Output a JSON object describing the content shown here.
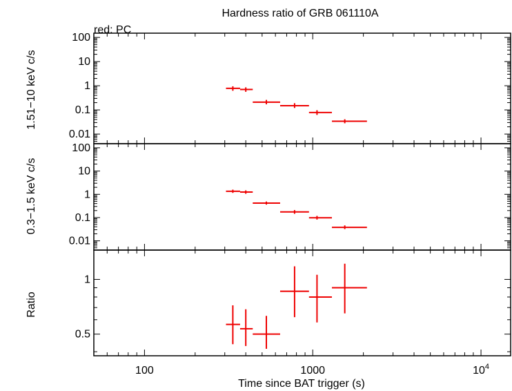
{
  "chart_data": {
    "type": "scatter",
    "title": "Hardness ratio of GRB 061110A",
    "subtitle": "red: PC",
    "xlabel": "Time since BAT trigger (s)",
    "x_scale": "log",
    "xlim": [
      50,
      15000
    ],
    "x_tick_labels": [
      {
        "value": 100,
        "label": "100"
      },
      {
        "value": 1000,
        "label": "1000"
      },
      {
        "value": 10000,
        "label": "10",
        "sup": "4"
      }
    ],
    "series_color": "#ee0000",
    "panels": [
      {
        "id": "hard",
        "ylabel": "1.51−10 keV c/s",
        "y_scale": "log",
        "ylim": [
          0.004,
          150
        ],
        "y_ticks": [
          {
            "value": 100,
            "label": "100"
          },
          {
            "value": 10,
            "label": "10"
          },
          {
            "value": 1,
            "label": "1"
          },
          {
            "value": 0.1,
            "label": "0.1"
          },
          {
            "value": 0.01,
            "label": "0.01"
          }
        ],
        "points": [
          {
            "x": 335,
            "xlo": 305,
            "xhi": 370,
            "y": 0.78,
            "ylo": 0.62,
            "yhi": 0.95
          },
          {
            "x": 400,
            "xlo": 370,
            "xhi": 440,
            "y": 0.7,
            "ylo": 0.56,
            "yhi": 0.86
          },
          {
            "x": 530,
            "xlo": 440,
            "xhi": 640,
            "y": 0.21,
            "ylo": 0.17,
            "yhi": 0.26
          },
          {
            "x": 780,
            "xlo": 640,
            "xhi": 950,
            "y": 0.15,
            "ylo": 0.12,
            "yhi": 0.19
          },
          {
            "x": 1060,
            "xlo": 950,
            "xhi": 1300,
            "y": 0.078,
            "ylo": 0.062,
            "yhi": 0.097
          },
          {
            "x": 1550,
            "xlo": 1300,
            "xhi": 2100,
            "y": 0.034,
            "ylo": 0.028,
            "yhi": 0.041
          }
        ]
      },
      {
        "id": "soft",
        "ylabel": "0.3−1.5 keV c/s",
        "y_scale": "log",
        "ylim": [
          0.004,
          150
        ],
        "y_ticks": [
          {
            "value": 100,
            "label": "100"
          },
          {
            "value": 10,
            "label": "10"
          },
          {
            "value": 1,
            "label": "1"
          },
          {
            "value": 0.1,
            "label": "0.1"
          },
          {
            "value": 0.01,
            "label": "0.01"
          }
        ],
        "points": [
          {
            "x": 335,
            "xlo": 305,
            "xhi": 370,
            "y": 1.35,
            "ylo": 1.15,
            "yhi": 1.58
          },
          {
            "x": 400,
            "xlo": 370,
            "xhi": 440,
            "y": 1.25,
            "ylo": 1.05,
            "yhi": 1.48
          },
          {
            "x": 530,
            "xlo": 440,
            "xhi": 640,
            "y": 0.42,
            "ylo": 0.36,
            "yhi": 0.49
          },
          {
            "x": 780,
            "xlo": 640,
            "xhi": 950,
            "y": 0.175,
            "ylo": 0.145,
            "yhi": 0.21
          },
          {
            "x": 1060,
            "xlo": 950,
            "xhi": 1300,
            "y": 0.098,
            "ylo": 0.082,
            "yhi": 0.118
          },
          {
            "x": 1550,
            "xlo": 1300,
            "xhi": 2100,
            "y": 0.038,
            "ylo": 0.032,
            "yhi": 0.046
          }
        ]
      },
      {
        "id": "ratio",
        "ylabel": "Ratio",
        "y_scale": "log",
        "ylim": [
          0.38,
          1.45
        ],
        "y_ticks": [
          {
            "value": 1,
            "label": "1"
          },
          {
            "value": 0.5,
            "label": "0.5"
          }
        ],
        "y_minor_ticks": [
          0.4,
          0.6,
          0.7,
          0.8,
          0.9
        ],
        "points": [
          {
            "x": 335,
            "xlo": 305,
            "xhi": 370,
            "y": 0.565,
            "ylo": 0.44,
            "yhi": 0.72
          },
          {
            "x": 400,
            "xlo": 370,
            "xhi": 440,
            "y": 0.535,
            "ylo": 0.43,
            "yhi": 0.685
          },
          {
            "x": 530,
            "xlo": 440,
            "xhi": 640,
            "y": 0.5,
            "ylo": 0.415,
            "yhi": 0.63
          },
          {
            "x": 780,
            "xlo": 640,
            "xhi": 950,
            "y": 0.86,
            "ylo": 0.62,
            "yhi": 1.18
          },
          {
            "x": 1060,
            "xlo": 950,
            "xhi": 1300,
            "y": 0.8,
            "ylo": 0.58,
            "yhi": 1.06
          },
          {
            "x": 1550,
            "xlo": 1300,
            "xhi": 2100,
            "y": 0.9,
            "ylo": 0.65,
            "yhi": 1.22
          }
        ]
      }
    ]
  }
}
